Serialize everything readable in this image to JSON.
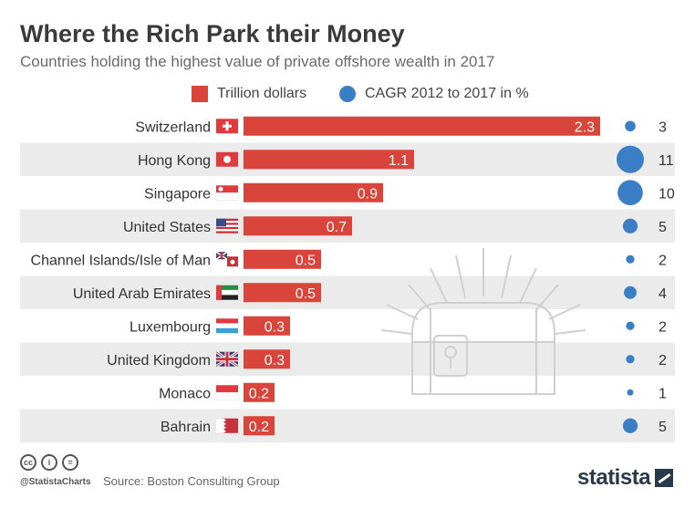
{
  "title": "Where the Rich Park their Money",
  "subtitle": "Countries holding the highest value of private offshore wealth in 2017",
  "legend": {
    "bars": "Trillion dollars",
    "bubbles": "CAGR 2012 to 2017 in %"
  },
  "colors": {
    "bar": "#d9453a",
    "bubble": "#3a7fc6",
    "stripe": "#ebebeb"
  },
  "chart_data": {
    "type": "bar",
    "orientation": "horizontal",
    "categories": [
      "Switzerland",
      "Hong Kong",
      "Singapore",
      "United States",
      "Channel Islands/Isle of Man",
      "United Arab Emirates",
      "Luxembourg",
      "United Kingdom",
      "Monaco",
      "Bahrain"
    ],
    "series": [
      {
        "name": "Trillion dollars",
        "values": [
          2.3,
          1.1,
          0.9,
          0.7,
          0.5,
          0.5,
          0.3,
          0.3,
          0.2,
          0.2
        ]
      },
      {
        "name": "CAGR 2012 to 2017 in %",
        "values": [
          3,
          11,
          10,
          5,
          2,
          4,
          2,
          2,
          1,
          5
        ]
      }
    ],
    "flags": [
      "flag-switzerland",
      "flag-hong-kong",
      "flag-singapore",
      "flag-united-states",
      "flag-channel-islands",
      "flag-uae",
      "flag-luxembourg",
      "flag-united-kingdom",
      "flag-monaco",
      "flag-bahrain"
    ]
  },
  "footer": {
    "handle": "@StatistaCharts",
    "source": "Source: Boston Consulting Group",
    "brand": "statista"
  }
}
